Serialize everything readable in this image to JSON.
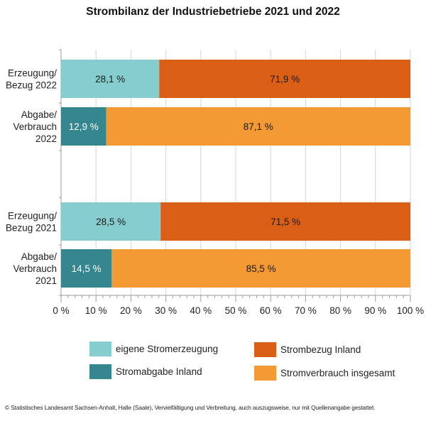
{
  "chart_data": {
    "type": "bar",
    "orientation": "horizontal",
    "stacked": true,
    "title": "Strombilanz der Industriebetriebe 2021 und 2022",
    "xlabel": "",
    "ylabel": "",
    "xlim": [
      0,
      100
    ],
    "x_ticks": [
      "0 %",
      "10 %",
      "20 %",
      "30 %",
      "40 %",
      "50 %",
      "60 %",
      "70 %",
      "80 %",
      "90 %",
      "100 %"
    ],
    "grid": true,
    "legend_position": "bottom",
    "categories": [
      {
        "label_lines": [
          "Erzeugung/",
          "Bezug 2022"
        ],
        "group": 0
      },
      {
        "label_lines": [
          "Abgabe/",
          "Verbrauch",
          "2022"
        ],
        "group": 0
      },
      {
        "label_lines": [
          "Erzeugung/",
          "Bezug 2021"
        ],
        "group": 1
      },
      {
        "label_lines": [
          "Abgabe/",
          "Verbrauch",
          "2021"
        ],
        "group": 1
      }
    ],
    "bars": [
      {
        "segments": [
          {
            "series": "eigene Stromerzeugung",
            "value": 28.1,
            "label": "28,1 %"
          },
          {
            "series": "Strombezug Inland",
            "value": 71.9,
            "label": "71,9 %"
          }
        ]
      },
      {
        "segments": [
          {
            "series": "Stromabgabe Inland",
            "value": 12.9,
            "label": "12,9 %"
          },
          {
            "series": "Stromverbrauch insgesamt",
            "value": 87.1,
            "label": "87,1 %"
          }
        ]
      },
      {
        "segments": [
          {
            "series": "eigene Stromerzeugung",
            "value": 28.5,
            "label": "28,5 %"
          },
          {
            "series": "Strombezug Inland",
            "value": 71.5,
            "label": "71,5 %"
          }
        ]
      },
      {
        "segments": [
          {
            "series": "Stromabgabe Inland",
            "value": 14.5,
            "label": "14,5 %"
          },
          {
            "series": "Stromverbrauch insgesamt",
            "value": 85.5,
            "label": "85,5 %"
          }
        ]
      }
    ],
    "series": [
      {
        "name": "eigene Stromerzeugung",
        "color": "#86cdd0",
        "label_color": "#1a1a1a"
      },
      {
        "name": "Strombezug Inland",
        "color": "#d95f16",
        "label_color": "#1a1a1a"
      },
      {
        "name": "Stromabgabe Inland",
        "color": "#36868f",
        "label_color": "#ffffff"
      },
      {
        "name": "Stromverbrauch insgesamt",
        "color": "#f39a34",
        "label_color": "#1a1a1a"
      }
    ]
  },
  "legend": {
    "items": [
      {
        "label": "eigene Stromerzeugung",
        "color": "#86cdd0"
      },
      {
        "label": "Strombezug Inland",
        "color": "#d95f16"
      },
      {
        "label": "Stromabgabe Inland",
        "color": "#36868f"
      },
      {
        "label": "Stromverbrauch insgesamt",
        "color": "#f39a34"
      }
    ]
  },
  "footer": "© Statistisches Landesamt Sachsen-Anhalt, Halle (Saale), Vervielfältigung und Verbreitung, auch auszugsweise, nur mit Quellenangabe gestattet."
}
